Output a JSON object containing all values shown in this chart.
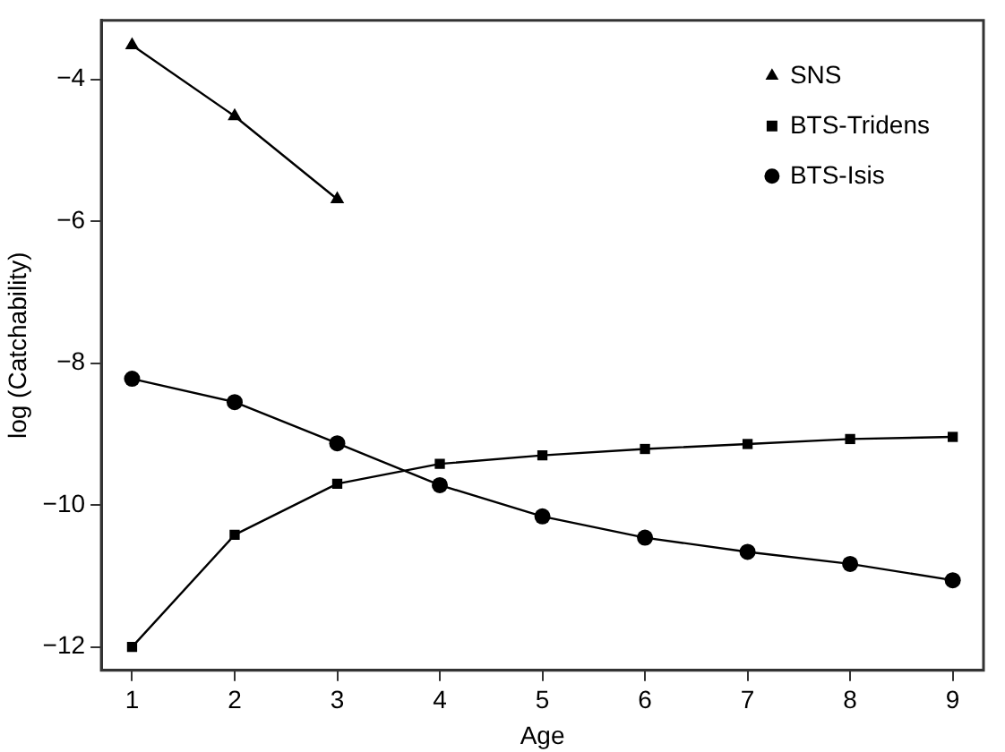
{
  "chart_data": {
    "type": "line",
    "xlabel": "Age",
    "ylabel": "log (Catchability)",
    "x": [
      1,
      2,
      3,
      4,
      5,
      6,
      7,
      8,
      9
    ],
    "series": [
      {
        "name": "SNS",
        "color": "#000000",
        "marker": "triangle",
        "values": [
          -3.52,
          -4.52,
          -5.69,
          null,
          null,
          null,
          null,
          null,
          null
        ]
      },
      {
        "name": "BTS-Tridens",
        "color": "#000000",
        "marker": "square",
        "values": [
          -12.0,
          -10.42,
          -9.7,
          -9.42,
          -9.3,
          -9.21,
          -9.14,
          -9.07,
          -9.04
        ]
      },
      {
        "name": "BTS-Isis",
        "color": "#000000",
        "marker": "circle",
        "values": [
          -8.22,
          -8.55,
          -9.13,
          -9.72,
          -10.16,
          -10.46,
          -10.66,
          -10.83,
          -11.06
        ]
      }
    ],
    "xlim": [
      0.7,
      9.3
    ],
    "xticks": [
      1,
      2,
      3,
      4,
      5,
      6,
      7,
      8,
      9
    ],
    "ylim": [
      -12.33,
      -3.17
    ],
    "yticks": [
      -12,
      -10,
      -8,
      -6,
      -4
    ],
    "grid": false,
    "legend": "top right",
    "line_style": "solid"
  }
}
